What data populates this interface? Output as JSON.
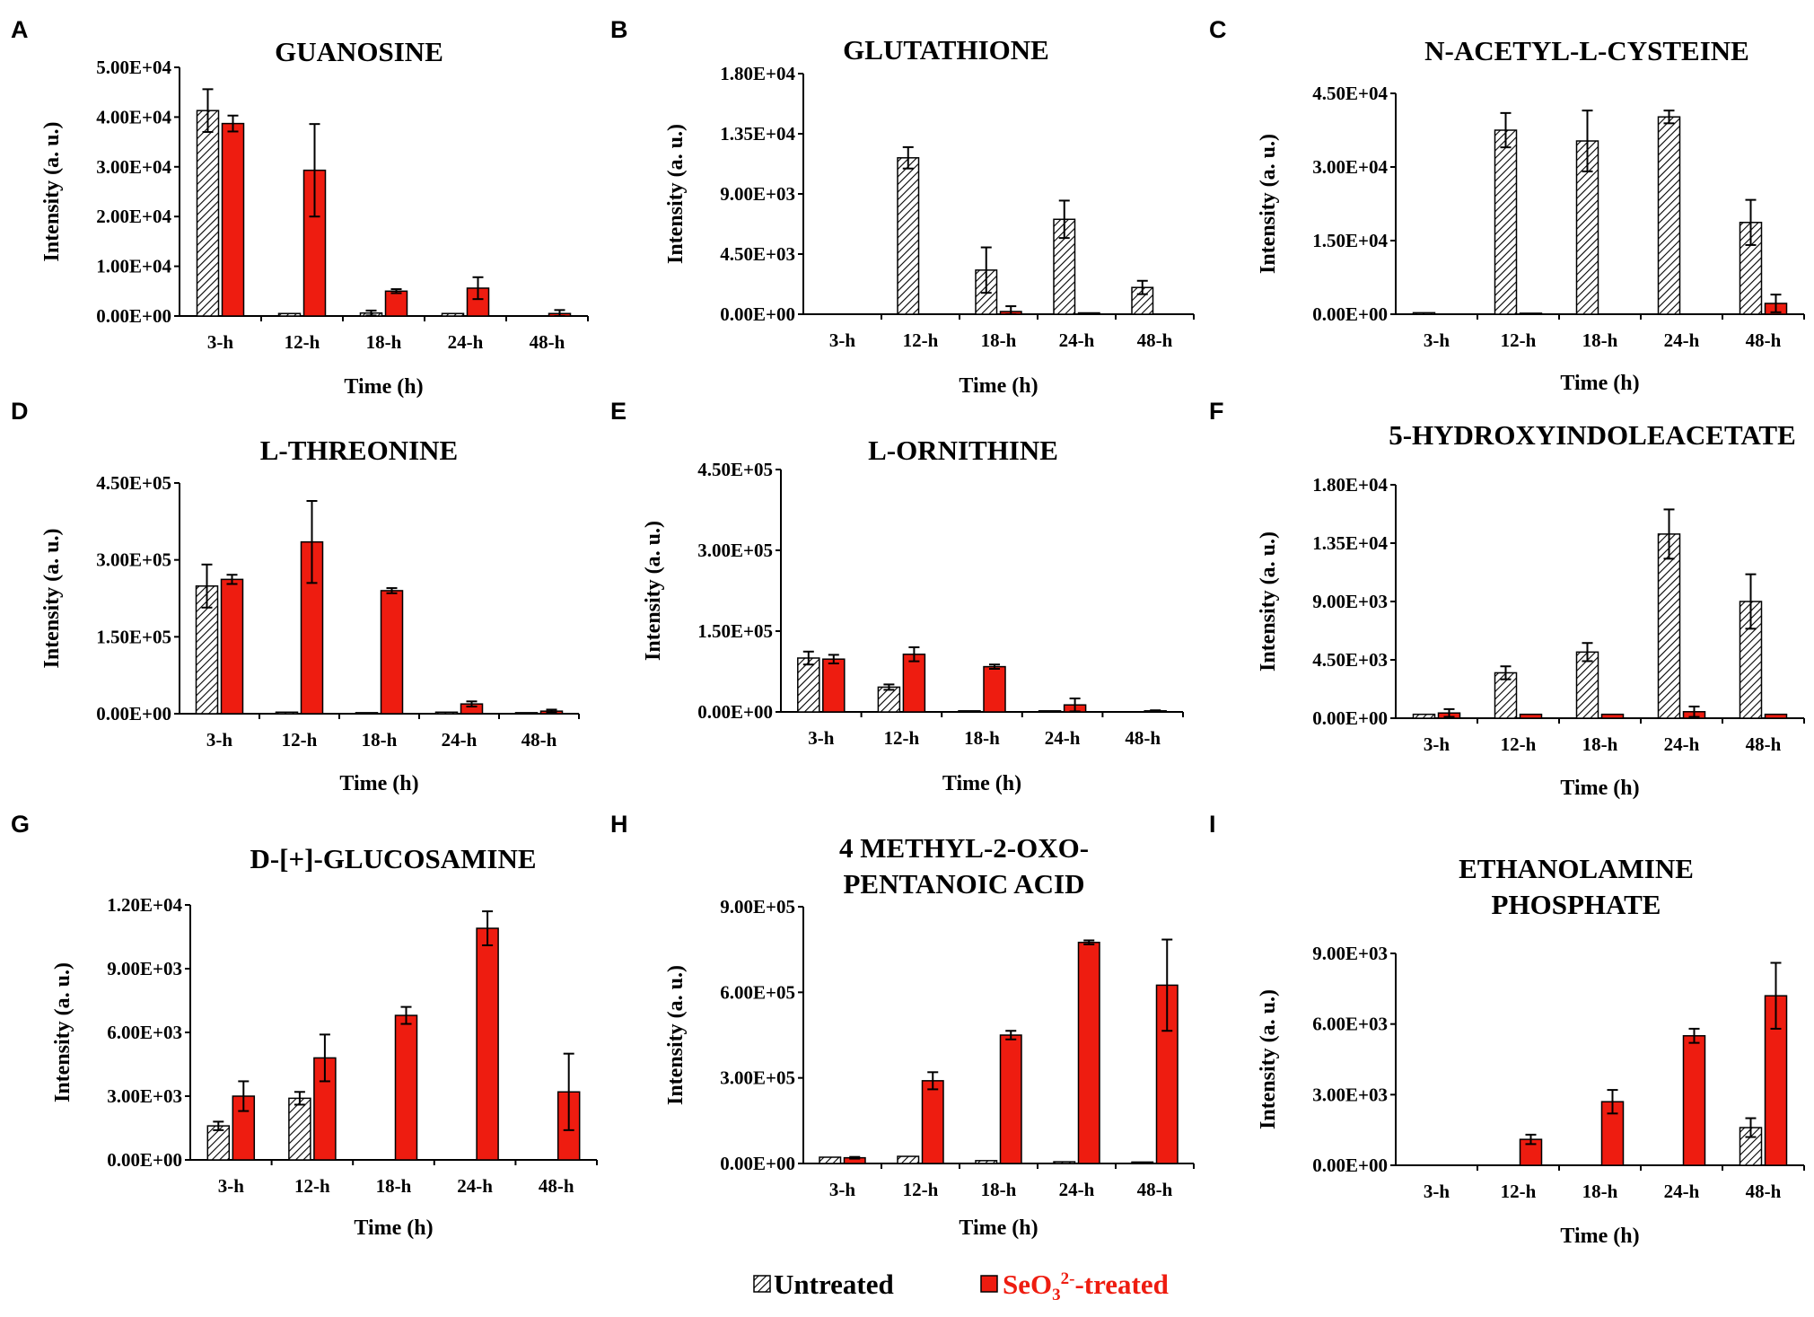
{
  "legend": {
    "untreated_label": "Untreated",
    "treated_prefix": "SeO",
    "treated_subscript": "3",
    "treated_superscript": "2-",
    "treated_suffix": "-treated",
    "untreated_color": "#ffffff",
    "untreated_hatch_color": "#000000",
    "treated_color": "#ee1c10",
    "treated_text_color": "#ee1c10"
  },
  "chart_data": [
    {
      "panel": "A",
      "type": "bar",
      "title": [
        "GUANOSINE"
      ],
      "categories": [
        "3-h",
        "12-h",
        "18-h",
        "24-h",
        "48-h"
      ],
      "xlabel": "Time (h)",
      "ylabel": "Intensity (a. u.)",
      "yticks": [
        "0.00E+00",
        "1.00E+04",
        "2.00E+04",
        "3.00E+04",
        "4.00E+04",
        "5.00E+04"
      ],
      "ylim": [
        0,
        50000
      ],
      "series": [
        {
          "name": "Untreated",
          "values": [
            41300,
            500,
            600,
            500,
            0
          ],
          "errors": [
            4300,
            0,
            500,
            0,
            0
          ]
        },
        {
          "name": "SeO3 2- -treated",
          "values": [
            38700,
            29300,
            5000,
            5600,
            500
          ],
          "errors": [
            1600,
            9300,
            400,
            2200,
            700
          ]
        }
      ]
    },
    {
      "panel": "B",
      "type": "bar",
      "title": [
        "GLUTATHIONE"
      ],
      "categories": [
        "3-h",
        "12-h",
        "18-h",
        "24-h",
        "48-h"
      ],
      "xlabel": "Time (h)",
      "ylabel": "Intensity (a. u.)",
      "yticks": [
        "0.00E+00",
        "4.50E+03",
        "9.00E+03",
        "1.35E+04",
        "1.80E+04"
      ],
      "ylim": [
        0,
        18000
      ],
      "series": [
        {
          "name": "Untreated",
          "values": [
            0,
            11700,
            3300,
            7100,
            2000
          ],
          "errors": [
            0,
            800,
            1700,
            1400,
            500
          ]
        },
        {
          "name": "SeO3 2- -treated",
          "values": [
            0,
            0,
            200,
            100,
            0
          ],
          "errors": [
            0,
            0,
            400,
            0,
            0
          ]
        }
      ]
    },
    {
      "panel": "C",
      "type": "bar",
      "title": [
        "N-ACETYL-L-CYSTEINE"
      ],
      "categories": [
        "3-h",
        "12-h",
        "18-h",
        "24-h",
        "48-h"
      ],
      "xlabel": "Time (h)",
      "ylabel": "Intensity (a. u.)",
      "yticks": [
        "0.00E+00",
        "1.50E+04",
        "3.00E+04",
        "4.50E+04"
      ],
      "ylim": [
        0,
        45000
      ],
      "series": [
        {
          "name": "Untreated",
          "values": [
            300,
            37500,
            35300,
            40200,
            18700
          ],
          "errors": [
            0,
            3500,
            6200,
            1300,
            4600
          ]
        },
        {
          "name": "SeO3 2- -treated",
          "values": [
            0,
            200,
            0,
            0,
            2200
          ],
          "errors": [
            0,
            0,
            0,
            0,
            1800
          ]
        }
      ]
    },
    {
      "panel": "D",
      "type": "bar",
      "title": [
        "L-THREONINE"
      ],
      "categories": [
        "3-h",
        "12-h",
        "18-h",
        "24-h",
        "48-h"
      ],
      "xlabel": "Time (h)",
      "ylabel": "Intensity (a. u.)",
      "yticks": [
        "0.00E+00",
        "1.50E+05",
        "3.00E+05",
        "4.50E+05"
      ],
      "ylim": [
        0,
        450000
      ],
      "series": [
        {
          "name": "Untreated",
          "values": [
            249000,
            3000,
            2000,
            3000,
            2000
          ],
          "errors": [
            42000,
            0,
            0,
            0,
            0
          ]
        },
        {
          "name": "SeO3 2- -treated",
          "values": [
            262000,
            335000,
            240000,
            19000,
            5000
          ],
          "errors": [
            9000,
            80000,
            5000,
            5000,
            3000
          ]
        }
      ]
    },
    {
      "panel": "E",
      "type": "bar",
      "title": [
        "L-ORNITHINE"
      ],
      "categories": [
        "3-h",
        "12-h",
        "18-h",
        "24-h",
        "48-h"
      ],
      "xlabel": "Time (h)",
      "ylabel": "Intensity (a. u.)",
      "yticks": [
        "0.00E+00",
        "1.50E+05",
        "3.00E+05",
        "4.50E+05"
      ],
      "ylim": [
        0,
        450000
      ],
      "series": [
        {
          "name": "Untreated",
          "values": [
            100000,
            46000,
            2000,
            2000,
            0
          ],
          "errors": [
            12000,
            5000,
            0,
            0,
            0
          ]
        },
        {
          "name": "SeO3 2- -treated",
          "values": [
            98000,
            107000,
            84000,
            13000,
            2000
          ],
          "errors": [
            8000,
            13000,
            4000,
            12000,
            1000
          ]
        }
      ]
    },
    {
      "panel": "F",
      "type": "bar",
      "title": [
        "5-HYDROXYINDOLEACETATE"
      ],
      "categories": [
        "3-h",
        "12-h",
        "18-h",
        "24-h",
        "48-h"
      ],
      "xlabel": "Time (h)",
      "ylabel": "Intensity (a. u.)",
      "yticks": [
        "0.00E+00",
        "4.50E+03",
        "9.00E+03",
        "1.35E+04",
        "1.80E+04"
      ],
      "ylim": [
        0,
        18000
      ],
      "series": [
        {
          "name": "Untreated",
          "values": [
            300,
            3500,
            5100,
            14200,
            9000
          ],
          "errors": [
            0,
            500,
            700,
            1900,
            2100
          ]
        },
        {
          "name": "SeO3 2- -treated",
          "values": [
            400,
            300,
            300,
            500,
            300
          ],
          "errors": [
            300,
            0,
            0,
            400,
            0
          ]
        }
      ]
    },
    {
      "panel": "G",
      "type": "bar",
      "title": [
        "D-[+]-GLUCOSAMINE"
      ],
      "categories": [
        "3-h",
        "12-h",
        "18-h",
        "24-h",
        "48-h"
      ],
      "xlabel": "Time (h)",
      "ylabel": "Intensity (a. u.)",
      "yticks": [
        "0.00E+00",
        "3.00E+03",
        "6.00E+03",
        "9.00E+03",
        "1.20E+04"
      ],
      "ylim": [
        0,
        12000
      ],
      "series": [
        {
          "name": "Untreated",
          "values": [
            1600,
            2900,
            0,
            0,
            0
          ],
          "errors": [
            200,
            300,
            0,
            0,
            0
          ]
        },
        {
          "name": "SeO3 2- -treated",
          "values": [
            3000,
            4800,
            6800,
            10900,
            3200
          ],
          "errors": [
            700,
            1100,
            400,
            800,
            1800
          ]
        }
      ]
    },
    {
      "panel": "H",
      "type": "bar",
      "title": [
        "4 METHYL-2-OXO-",
        "PENTANOIC ACID"
      ],
      "categories": [
        "3-h",
        "12-h",
        "18-h",
        "24-h",
        "48-h"
      ],
      "xlabel": "Time (h)",
      "ylabel": "Intensity (a. u.)",
      "yticks": [
        "0.00E+00",
        "3.00E+05",
        "6.00E+05",
        "9.00E+05"
      ],
      "ylim": [
        0,
        900000
      ],
      "series": [
        {
          "name": "Untreated",
          "values": [
            22000,
            25000,
            10000,
            6000,
            5000
          ],
          "errors": [
            0,
            0,
            0,
            0,
            0
          ]
        },
        {
          "name": "SeO3 2- -treated",
          "values": [
            20000,
            290000,
            450000,
            775000,
            625000
          ],
          "errors": [
            3000,
            30000,
            15000,
            7000,
            160000
          ]
        }
      ]
    },
    {
      "panel": "I",
      "type": "bar",
      "title": [
        "ETHANOLAMINE",
        "PHOSPHATE"
      ],
      "categories": [
        "3-h",
        "12-h",
        "18-h",
        "24-h",
        "48-h"
      ],
      "xlabel": "Time (h)",
      "ylabel": "Intensity (a. u.)",
      "yticks": [
        "0.00E+00",
        "3.00E+03",
        "6.00E+03",
        "9.00E+03"
      ],
      "ylim": [
        0,
        9000
      ],
      "series": [
        {
          "name": "Untreated",
          "values": [
            0,
            0,
            0,
            0,
            1600
          ],
          "errors": [
            0,
            0,
            0,
            0,
            400
          ]
        },
        {
          "name": "SeO3 2- -treated",
          "values": [
            0,
            1100,
            2700,
            5500,
            7200
          ],
          "errors": [
            0,
            200,
            500,
            300,
            1400
          ]
        }
      ]
    }
  ]
}
